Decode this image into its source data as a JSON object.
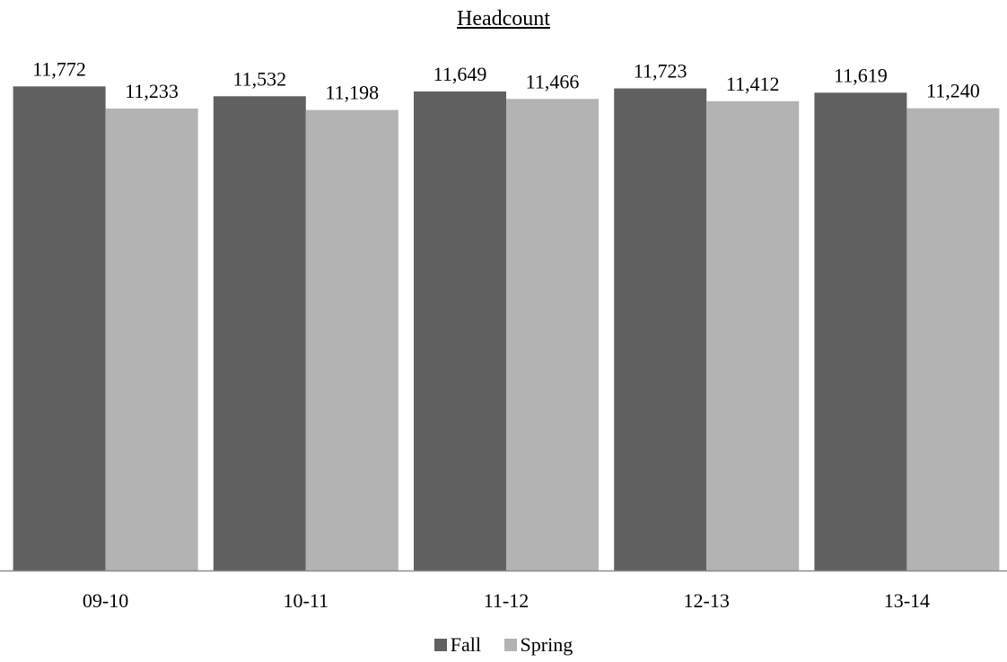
{
  "chart_data": {
    "type": "bar",
    "title": "Headcount",
    "categories": [
      "09-10",
      "10-11",
      "11-12",
      "12-13",
      "13-14"
    ],
    "series": [
      {
        "name": "Fall",
        "values": [
          11772,
          11532,
          11649,
          11723,
          11619
        ],
        "color": "#616161"
      },
      {
        "name": "Spring",
        "values": [
          11233,
          11198,
          11466,
          11412,
          11240
        ],
        "color": "#b3b3b3"
      }
    ],
    "data_labels": {
      "Fall": [
        "11,772",
        "11,532",
        "11,649",
        "11,723",
        "11,619"
      ],
      "Spring": [
        "11,233",
        "11,198",
        "11,466",
        "11,412",
        "11,240"
      ]
    },
    "ylim": [
      0,
      13000
    ],
    "grid": false,
    "legend_position": "bottom",
    "axis_color": "#8c8c8c"
  }
}
